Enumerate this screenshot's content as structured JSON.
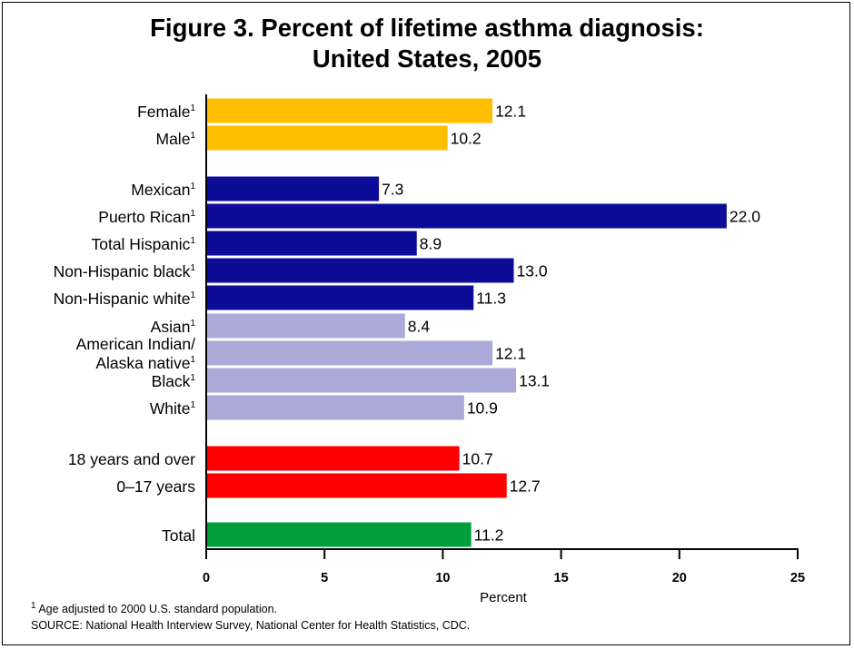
{
  "chart_data": {
    "type": "bar",
    "orientation": "horizontal",
    "title_lines": [
      "Figure 3. Percent of lifetime asthma diagnosis:",
      "United States, 2005"
    ],
    "xlabel": "Percent",
    "ylabel": "",
    "xlim": [
      0,
      25
    ],
    "xticks": [
      "0",
      "5",
      "10",
      "15",
      "20",
      "25"
    ],
    "grid": false,
    "categories": [
      {
        "label": "Female",
        "sup": "1",
        "value": 12.1,
        "value_label": "12.1",
        "group": "sex"
      },
      {
        "label": "Male",
        "sup": "1",
        "value": 10.2,
        "value_label": "10.2",
        "group": "sex"
      },
      {
        "label": "Mexican",
        "sup": "1",
        "value": 7.3,
        "value_label": "7.3",
        "group": "hispanic"
      },
      {
        "label": "Puerto Rican",
        "sup": "1",
        "value": 22.0,
        "value_label": "22.0",
        "group": "hispanic"
      },
      {
        "label": "Total Hispanic",
        "sup": "1",
        "value": 8.9,
        "value_label": "8.9",
        "group": "hispanic"
      },
      {
        "label": "Non-Hispanic black",
        "sup": "1",
        "value": 13.0,
        "value_label": "13.0",
        "group": "hispanic"
      },
      {
        "label": "Non-Hispanic white",
        "sup": "1",
        "value": 11.3,
        "value_label": "11.3",
        "group": "hispanic"
      },
      {
        "label": "Asian",
        "sup": "1",
        "value": 8.4,
        "value_label": "8.4",
        "group": "race"
      },
      {
        "label_lines": [
          "American Indian/",
          "Alaska native"
        ],
        "sup": "1",
        "value": 12.1,
        "value_label": "12.1",
        "group": "race"
      },
      {
        "label": "Black",
        "sup": "1",
        "value": 13.1,
        "value_label": "13.1",
        "group": "race"
      },
      {
        "label": "White",
        "sup": "1",
        "value": 10.9,
        "value_label": "10.9",
        "group": "race"
      },
      {
        "label": "18 years and over",
        "sup": "",
        "value": 10.7,
        "value_label": "10.7",
        "group": "age"
      },
      {
        "label": "0–17 years",
        "sup": "",
        "value": 12.7,
        "value_label": "12.7",
        "group": "age"
      },
      {
        "label": "Total",
        "sup": "",
        "value": 11.2,
        "value_label": "11.2",
        "group": "total"
      }
    ],
    "group_colors": {
      "sex": "#FFBF00",
      "hispanic": "#0C0C99",
      "race": "#ABA9D8",
      "age": "#FF0000",
      "total": "#009F3C"
    }
  },
  "footnote": {
    "mark": "1",
    "text": " Age adjusted to 2000 U.S. standard population."
  },
  "source": "SOURCE: National Health Interview Survey, National Center for Health Statistics, CDC."
}
